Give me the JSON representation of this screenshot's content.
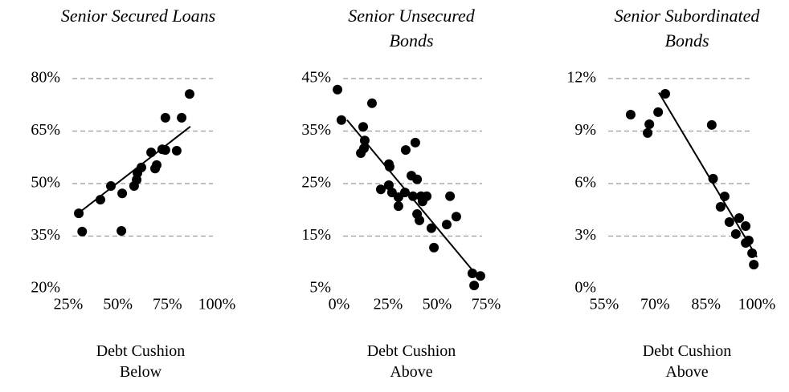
{
  "chart_data": [
    {
      "type": "scatter",
      "title": "Senior Secured Loans",
      "x_label": "Debt Cushion Below",
      "color": "#000000",
      "grid": true,
      "x": [
        30.3,
        32,
        41.2,
        46.5,
        52.2,
        51.8,
        58.2,
        59.5,
        59.9,
        61.9,
        66.8,
        68.8,
        69.6,
        72.4,
        74,
        74,
        79.7,
        82.2,
        86.2
      ],
      "values": [
        41.5,
        36.3,
        45.4,
        49.3,
        47.2,
        36.5,
        49.3,
        51.1,
        53,
        54.6,
        58.9,
        54.3,
        55.3,
        59.8,
        59.6,
        68.8,
        59.4,
        68.8,
        75.6
      ],
      "trendline": {
        "x": [
          29.1,
          86.6
        ],
        "y": [
          41.1,
          66.3
        ]
      },
      "xlim": [
        25,
        100
      ],
      "xticks": [
        {
          "value": 25,
          "label": "25%"
        },
        {
          "value": 50,
          "label": "50%"
        },
        {
          "value": 75,
          "label": "75%"
        },
        {
          "value": 100,
          "label": "100%"
        }
      ],
      "ylim": [
        20,
        80
      ],
      "yticks": [
        {
          "value": 20,
          "label": "20%"
        },
        {
          "value": 35,
          "label": "35%"
        },
        {
          "value": 50,
          "label": "50%"
        },
        {
          "value": 65,
          "label": "65%"
        },
        {
          "value": 80,
          "label": "80%"
        }
      ]
    },
    {
      "type": "scatter",
      "title": "Senior Unsecured Bonds",
      "x_label": "Debt Cushion Above",
      "color": "#000000",
      "grid": true,
      "x": [
        -0.8,
        1.2,
        16.8,
        12.3,
        13.1,
        12.7,
        11.1,
        25.4,
        25.8,
        25.4,
        21.3,
        27,
        30.3,
        30.3,
        33.6,
        34,
        36.9,
        39.8,
        38.9,
        37.7,
        41.8,
        39.8,
        41,
        44.7,
        42.6,
        47.1,
        48.4,
        54.9,
        56.6,
        59.8,
        68,
        68.9,
        72.1
      ],
      "values": [
        42.9,
        37.1,
        40.3,
        35.8,
        33.2,
        31.7,
        30.8,
        28.7,
        28.2,
        24.7,
        23.9,
        23.3,
        22.4,
        20.7,
        23.3,
        31.4,
        26.5,
        25.8,
        32.8,
        22.6,
        22.6,
        19.2,
        18,
        22.6,
        21.6,
        16.5,
        12.8,
        17.2,
        22.6,
        18.7,
        7.9,
        5.6,
        7.4
      ],
      "trendline": {
        "x": [
          4.1,
          70.5
        ],
        "y": [
          37.1,
          7.4
        ]
      },
      "xlim": [
        0,
        75
      ],
      "xticks": [
        {
          "value": 0,
          "label": "0%"
        },
        {
          "value": 25,
          "label": "25%"
        },
        {
          "value": 50,
          "label": "50%"
        },
        {
          "value": 75,
          "label": "75%"
        }
      ],
      "ylim": [
        5,
        45
      ],
      "yticks": [
        {
          "value": 5,
          "label": "5%"
        },
        {
          "value": 15,
          "label": "15%"
        },
        {
          "value": 25,
          "label": "25%"
        },
        {
          "value": 35,
          "label": "35%"
        },
        {
          "value": 45,
          "label": "45%"
        }
      ]
    },
    {
      "type": "scatter",
      "title": "Senior Subordinated Bonds",
      "x_label": "Debt Cushion Above",
      "color": "#000000",
      "grid": true,
      "x": [
        62.8,
        67.8,
        68.3,
        70.9,
        73,
        86.7,
        87.1,
        89.3,
        90.5,
        91.9,
        93.8,
        94.8,
        96.7,
        96.7,
        97.6,
        98.6,
        99.1
      ],
      "values": [
        9.94,
        8.89,
        9.39,
        10.08,
        11.13,
        9.35,
        6.28,
        4.67,
        5.27,
        3.8,
        3.12,
        4.03,
        3.57,
        2.61,
        2.75,
        2.02,
        1.37
      ],
      "trendline": {
        "x": [
          71.1,
          100
        ],
        "y": [
          11.2,
          1.8
        ]
      },
      "xlim": [
        55,
        100
      ],
      "xticks": [
        {
          "value": 55,
          "label": "55%"
        },
        {
          "value": 70,
          "label": "70%"
        },
        {
          "value": 85,
          "label": "85%"
        },
        {
          "value": 100,
          "label": "100%"
        }
      ],
      "ylim": [
        0,
        12
      ],
      "yticks": [
        {
          "value": 0,
          "label": "0%"
        },
        {
          "value": 3,
          "label": "3%"
        },
        {
          "value": 6,
          "label": "6%"
        },
        {
          "value": 9,
          "label": "9%"
        },
        {
          "value": 12,
          "label": "12%"
        }
      ]
    }
  ]
}
